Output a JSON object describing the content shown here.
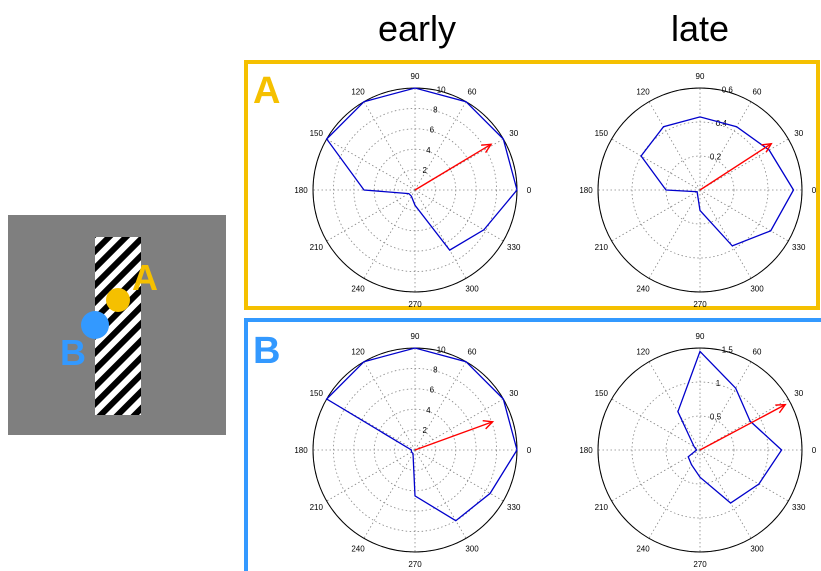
{
  "columns": {
    "early": "early",
    "late": "late"
  },
  "stimulus": {
    "background": "#7f7f7f",
    "points": [
      {
        "label": "A",
        "color": "#f5c000"
      },
      {
        "label": "B",
        "color": "#3399ff"
      }
    ]
  },
  "panels": [
    {
      "label": "A",
      "color": "#f5c000"
    },
    {
      "label": "B",
      "color": "#3399ff"
    }
  ],
  "colors": {
    "tuning": "#0000cc",
    "vector": "#ff0000",
    "grid": "#888888"
  },
  "chart_data": [
    {
      "type": "polar",
      "panel": "A",
      "column": "early",
      "angle_ticks": [
        "0",
        "30",
        "60",
        "90",
        "120",
        "150",
        "180",
        "210",
        "240",
        "270",
        "300",
        "330"
      ],
      "r_max": 10,
      "r_ticks": [
        2,
        4,
        6,
        8,
        10
      ],
      "angles": [
        0,
        30,
        60,
        90,
        120,
        150,
        180,
        210,
        240,
        270,
        300,
        330
      ],
      "radii": [
        10.0,
        10.0,
        10.0,
        10.0,
        10.0,
        10.0,
        5.0,
        0.7,
        0.7,
        1.5,
        6.8,
        7.8
      ],
      "vector": {
        "angle": 31,
        "r": 8.7
      }
    },
    {
      "type": "polar",
      "panel": "A",
      "column": "late",
      "angle_ticks": [
        "0",
        "30",
        "60",
        "90",
        "120",
        "150",
        "180",
        "210",
        "240",
        "270",
        "300",
        "330"
      ],
      "r_max": 0.6,
      "r_ticks": [
        0.2,
        0.4,
        0.6
      ],
      "angles": [
        0,
        30,
        60,
        90,
        120,
        150,
        180,
        210,
        240,
        270,
        300,
        330
      ],
      "radii": [
        0.55,
        0.47,
        0.43,
        0.43,
        0.43,
        0.4,
        0.2,
        0.02,
        0.03,
        0.12,
        0.38,
        0.48
      ],
      "vector": {
        "angle": 33,
        "r": 0.5
      }
    },
    {
      "type": "polar",
      "panel": "B",
      "column": "early",
      "angle_ticks": [
        "0",
        "30",
        "60",
        "90",
        "120",
        "150",
        "180",
        "210",
        "240",
        "270",
        "300",
        "330"
      ],
      "r_max": 10,
      "r_ticks": [
        2,
        4,
        6,
        8,
        10
      ],
      "angles": [
        0,
        30,
        60,
        90,
        120,
        150,
        180,
        210,
        240,
        270,
        300,
        330
      ],
      "radii": [
        10.0,
        10.0,
        10.0,
        10.0,
        10.0,
        10.0,
        0.35,
        0.4,
        0.4,
        4.5,
        8.0,
        8.5
      ],
      "vector": {
        "angle": 20,
        "r": 8.1
      }
    },
    {
      "type": "polar",
      "panel": "B",
      "column": "late",
      "angle_ticks": [
        "0",
        "30",
        "60",
        "90",
        "120",
        "150",
        "180",
        "210",
        "240",
        "270",
        "300",
        "330"
      ],
      "r_max": 1.5,
      "r_ticks": [
        0.5,
        1,
        1.5
      ],
      "angles": [
        0,
        30,
        60,
        90,
        120,
        150,
        180,
        210,
        240,
        270,
        300,
        330
      ],
      "radii": [
        1.2,
        0.85,
        1.05,
        1.45,
        0.65,
        0.1,
        0.05,
        0.2,
        0.25,
        0.4,
        0.9,
        1.0
      ],
      "vector": {
        "angle": 28,
        "r": 1.42
      }
    }
  ]
}
